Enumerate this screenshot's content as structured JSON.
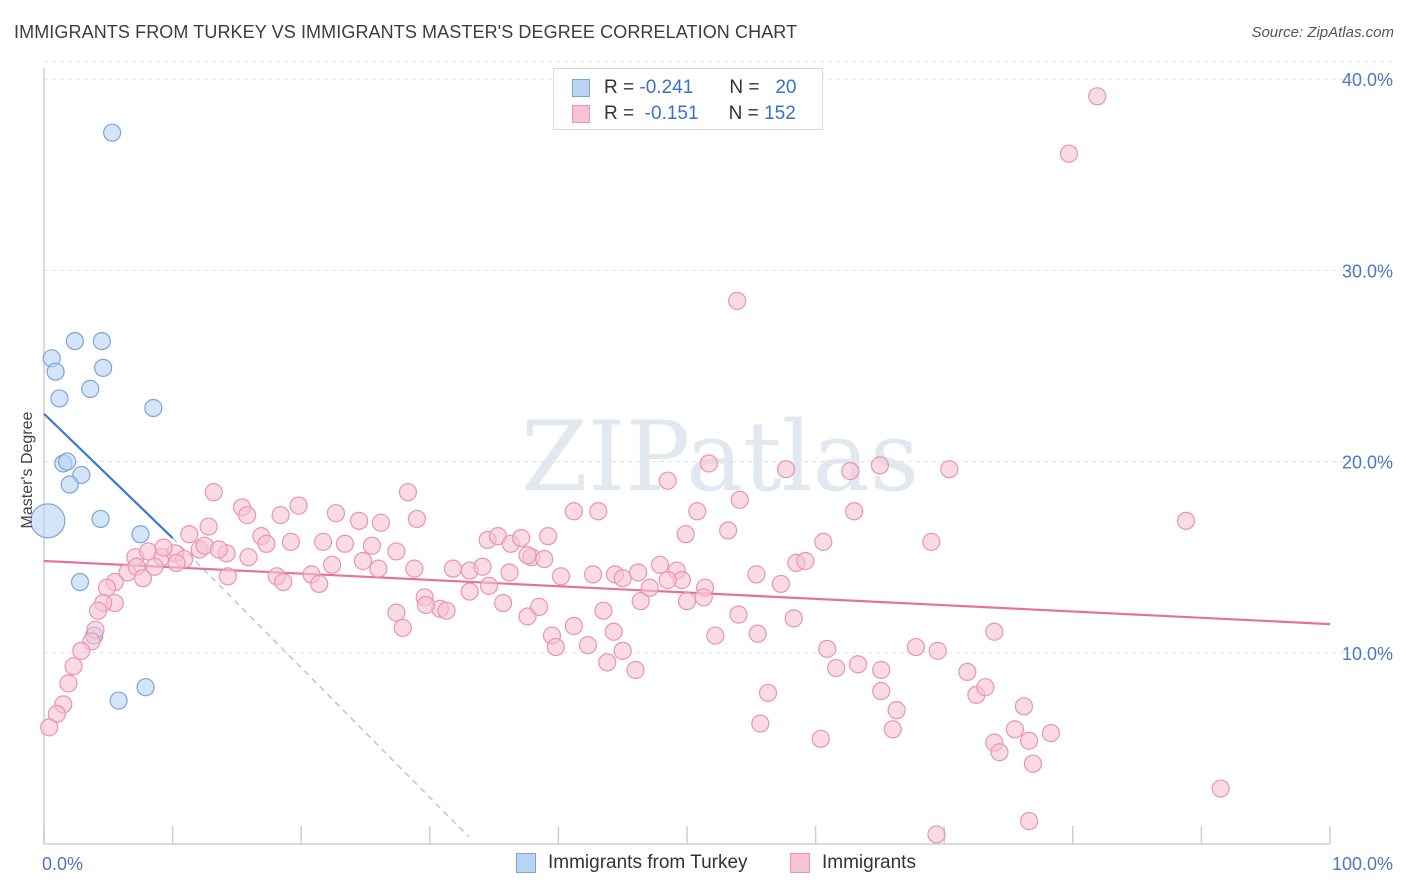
{
  "title": "IMMIGRANTS FROM TURKEY VS IMMIGRANTS MASTER'S DEGREE CORRELATION CHART",
  "source": "Source: ZipAtlas.com",
  "watermark": "ZIPatlas",
  "colors": {
    "blue_fill": "#b8d3f3",
    "blue_stroke": "#7aa5dd",
    "blue_line": "#3a78d6",
    "pink_fill": "#f7c3d4",
    "pink_stroke": "#eb93b2",
    "pink_line": "#e4739c",
    "tick_text": "#4a78c2"
  },
  "legend_top": {
    "rows": [
      {
        "r_label": "R =",
        "r_value": "-0.241",
        "n_label": "N =",
        "n_value": "20"
      },
      {
        "r_label": "R =",
        "r_value": "-0.151",
        "n_label": "N =",
        "n_value": "152"
      }
    ]
  },
  "legend_bottom": {
    "items": [
      "Immigrants from Turkey",
      "Immigrants"
    ]
  },
  "chart_data": {
    "type": "scatter",
    "ylabel": "Master's Degree",
    "xlim": [
      0,
      100
    ],
    "ylim": [
      0,
      41
    ],
    "x_tick_labels": [
      "0.0%",
      "100.0%"
    ],
    "y_ticks": [
      {
        "value": 10,
        "label": "10.0%"
      },
      {
        "value": 20,
        "label": "20.0%"
      },
      {
        "value": 30,
        "label": "30.0%"
      },
      {
        "value": 40,
        "label": "40.0%"
      }
    ],
    "grid": true,
    "series": [
      {
        "name": "Immigrants from Turkey",
        "color": "blue",
        "points": [
          [
            5.3,
            37.2
          ],
          [
            4.5,
            26.3
          ],
          [
            2.4,
            26.3
          ],
          [
            0.6,
            25.4
          ],
          [
            0.9,
            24.7
          ],
          [
            4.6,
            24.9
          ],
          [
            3.6,
            23.8
          ],
          [
            1.2,
            23.3
          ],
          [
            8.5,
            22.8
          ],
          [
            1.5,
            19.9
          ],
          [
            1.8,
            20.0
          ],
          [
            2.9,
            19.3
          ],
          [
            2.0,
            18.8
          ],
          [
            0.3,
            16.9
          ],
          [
            4.4,
            17.0
          ],
          [
            7.5,
            16.2
          ],
          [
            2.8,
            13.7
          ],
          [
            3.9,
            10.9
          ],
          [
            5.8,
            7.5
          ],
          [
            7.9,
            8.2
          ]
        ],
        "trend": {
          "x0": 0,
          "y0": 22.5,
          "x1": 10,
          "y1": 16.0,
          "dash_x1": 33,
          "dash_y1": 0.4
        }
      },
      {
        "name": "Immigrants",
        "color": "pink",
        "points": [
          [
            81.9,
            39.1
          ],
          [
            79.7,
            36.1
          ],
          [
            53.9,
            28.4
          ],
          [
            51.7,
            19.9
          ],
          [
            57.7,
            19.6
          ],
          [
            62.7,
            19.5
          ],
          [
            65.0,
            19.8
          ],
          [
            70.4,
            19.6
          ],
          [
            48.5,
            19.0
          ],
          [
            13.2,
            18.4
          ],
          [
            28.3,
            18.4
          ],
          [
            54.1,
            18.0
          ],
          [
            15.4,
            17.6
          ],
          [
            19.8,
            17.7
          ],
          [
            22.7,
            17.3
          ],
          [
            41.2,
            17.4
          ],
          [
            43.1,
            17.4
          ],
          [
            50.8,
            17.4
          ],
          [
            63.0,
            17.4
          ],
          [
            88.8,
            16.9
          ],
          [
            15.8,
            17.2
          ],
          [
            11.3,
            16.2
          ],
          [
            12.8,
            16.6
          ],
          [
            18.4,
            17.2
          ],
          [
            24.5,
            16.9
          ],
          [
            29.0,
            17.0
          ],
          [
            26.2,
            16.8
          ],
          [
            49.9,
            16.2
          ],
          [
            53.2,
            16.4
          ],
          [
            60.6,
            15.8
          ],
          [
            69.0,
            15.8
          ],
          [
            16.9,
            16.1
          ],
          [
            17.3,
            15.7
          ],
          [
            19.2,
            15.8
          ],
          [
            21.7,
            15.8
          ],
          [
            23.4,
            15.7
          ],
          [
            25.5,
            15.6
          ],
          [
            27.4,
            15.3
          ],
          [
            34.5,
            15.9
          ],
          [
            35.3,
            16.1
          ],
          [
            36.3,
            15.7
          ],
          [
            37.1,
            16.0
          ],
          [
            37.9,
            15.0
          ],
          [
            39.2,
            16.1
          ],
          [
            7.1,
            15.0
          ],
          [
            8.1,
            15.3
          ],
          [
            9.2,
            15.0
          ],
          [
            10.2,
            15.2
          ],
          [
            10.9,
            14.9
          ],
          [
            12.1,
            15.4
          ],
          [
            14.2,
            15.2
          ],
          [
            15.9,
            15.0
          ],
          [
            18.1,
            14.0
          ],
          [
            20.8,
            14.1
          ],
          [
            22.4,
            14.6
          ],
          [
            24.8,
            14.8
          ],
          [
            26.0,
            14.4
          ],
          [
            28.8,
            14.4
          ],
          [
            31.8,
            14.4
          ],
          [
            33.1,
            14.3
          ],
          [
            34.1,
            14.5
          ],
          [
            36.2,
            14.2
          ],
          [
            37.6,
            15.1
          ],
          [
            38.9,
            14.9
          ],
          [
            40.2,
            14.0
          ],
          [
            42.7,
            14.1
          ],
          [
            44.4,
            14.1
          ],
          [
            45.0,
            13.9
          ],
          [
            46.2,
            14.2
          ],
          [
            47.9,
            14.6
          ],
          [
            49.2,
            14.3
          ],
          [
            49.6,
            13.8
          ],
          [
            51.4,
            13.4
          ],
          [
            55.4,
            14.1
          ],
          [
            58.5,
            14.7
          ],
          [
            59.2,
            14.8
          ],
          [
            57.3,
            13.6
          ],
          [
            6.5,
            14.2
          ],
          [
            7.2,
            14.5
          ],
          [
            7.7,
            13.9
          ],
          [
            8.6,
            14.5
          ],
          [
            9.3,
            15.5
          ],
          [
            10.3,
            14.7
          ],
          [
            12.5,
            15.6
          ],
          [
            13.6,
            15.4
          ],
          [
            14.3,
            14.0
          ],
          [
            5.5,
            13.7
          ],
          [
            4.9,
            13.4
          ],
          [
            5.5,
            12.6
          ],
          [
            4.6,
            12.6
          ],
          [
            4.2,
            12.2
          ],
          [
            4.0,
            11.2
          ],
          [
            3.7,
            10.6
          ],
          [
            2.9,
            10.1
          ],
          [
            2.3,
            9.3
          ],
          [
            1.9,
            8.4
          ],
          [
            1.5,
            7.3
          ],
          [
            1.0,
            6.8
          ],
          [
            0.4,
            6.1
          ],
          [
            18.6,
            13.7
          ],
          [
            21.4,
            13.6
          ],
          [
            27.4,
            12.1
          ],
          [
            29.6,
            12.9
          ],
          [
            30.8,
            12.3
          ],
          [
            33.1,
            13.2
          ],
          [
            34.6,
            13.5
          ],
          [
            35.7,
            12.6
          ],
          [
            29.7,
            12.5
          ],
          [
            31.3,
            12.2
          ],
          [
            27.9,
            11.3
          ],
          [
            37.6,
            11.9
          ],
          [
            38.5,
            12.4
          ],
          [
            39.5,
            10.9
          ],
          [
            39.8,
            10.3
          ],
          [
            41.2,
            11.4
          ],
          [
            42.3,
            10.4
          ],
          [
            43.5,
            12.2
          ],
          [
            44.3,
            11.1
          ],
          [
            45.0,
            10.1
          ],
          [
            46.4,
            12.7
          ],
          [
            47.1,
            13.4
          ],
          [
            48.5,
            13.8
          ],
          [
            50.0,
            12.7
          ],
          [
            51.3,
            12.9
          ],
          [
            52.2,
            10.9
          ],
          [
            54.0,
            12.0
          ],
          [
            55.5,
            11.0
          ],
          [
            58.3,
            11.8
          ],
          [
            43.8,
            9.5
          ],
          [
            46.0,
            9.1
          ],
          [
            60.9,
            10.2
          ],
          [
            61.6,
            9.2
          ],
          [
            63.3,
            9.4
          ],
          [
            65.1,
            9.1
          ],
          [
            67.8,
            10.3
          ],
          [
            69.5,
            10.1
          ],
          [
            71.8,
            9.0
          ],
          [
            73.9,
            11.1
          ],
          [
            72.5,
            7.8
          ],
          [
            73.2,
            8.2
          ],
          [
            56.3,
            7.9
          ],
          [
            65.1,
            8.0
          ],
          [
            66.3,
            7.0
          ],
          [
            55.7,
            6.3
          ],
          [
            60.4,
            5.5
          ],
          [
            66.0,
            6.0
          ],
          [
            73.9,
            5.3
          ],
          [
            74.3,
            4.8
          ],
          [
            75.5,
            6.0
          ],
          [
            76.6,
            5.4
          ],
          [
            76.2,
            7.2
          ],
          [
            78.3,
            5.8
          ],
          [
            76.9,
            4.2
          ],
          [
            91.5,
            2.9
          ],
          [
            76.6,
            1.2
          ],
          [
            69.4,
            0.5
          ]
        ],
        "trend": {
          "x0": 0,
          "y0": 14.8,
          "x1": 100,
          "y1": 11.5
        }
      }
    ]
  }
}
